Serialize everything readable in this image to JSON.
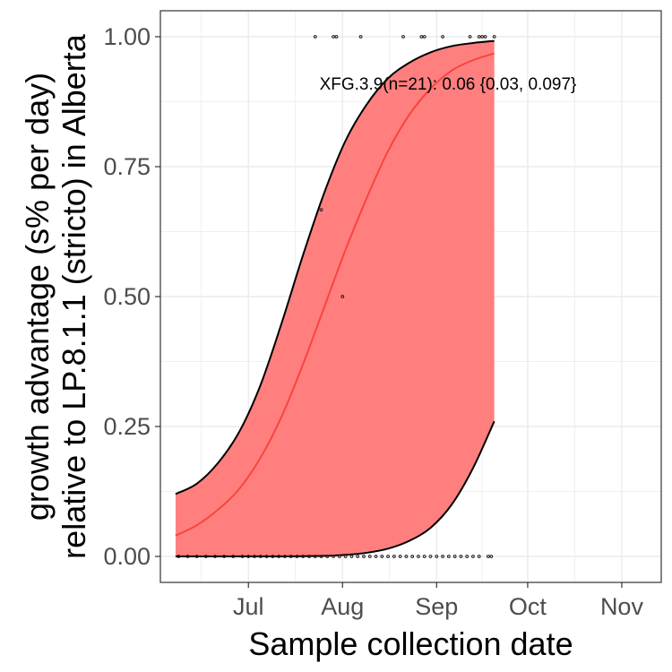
{
  "chart_data": {
    "type": "line",
    "xlabel": "Sample collection date",
    "ylabel_lines": [
      "growth advantage (s% per day)",
      "relative to LP.8.1.1 (stricto) in Alberta"
    ],
    "annotation": "XFG.3.9(n=21): 0.06 {0.03, 0.097}",
    "x_ticks": [
      {
        "date": "2025-07-01",
        "label": "Jul"
      },
      {
        "date": "2025-08-01",
        "label": "Aug"
      },
      {
        "date": "2025-09-01",
        "label": "Sep"
      },
      {
        "date": "2025-10-01",
        "label": "Oct"
      },
      {
        "date": "2025-11-01",
        "label": "Nov"
      }
    ],
    "y_ticks": [
      {
        "value": 0,
        "label": "0.00"
      },
      {
        "value": 0.25,
        "label": "0.25"
      },
      {
        "value": 0.5,
        "label": "0.50"
      },
      {
        "value": 0.75,
        "label": "0.75"
      },
      {
        "value": 1,
        "label": "1.00"
      }
    ],
    "xlim": [
      "2025-06-02",
      "2025-11-14"
    ],
    "ylim": [
      -0.05,
      1.05
    ],
    "grid": true,
    "colors": {
      "band": "#ff7f7f",
      "fit": "#f8453d",
      "bounds": "#000000",
      "points": "#2b1a1a",
      "grid": "#ebebeb",
      "panel_border": "#333333"
    },
    "series": [
      {
        "role": "fit",
        "x": [
          "2025-06-07",
          "2025-06-14",
          "2025-06-21",
          "2025-06-28",
          "2025-07-05",
          "2025-07-12",
          "2025-07-19",
          "2025-07-26",
          "2025-08-02",
          "2025-08-09",
          "2025-08-16",
          "2025-08-23",
          "2025-08-30",
          "2025-09-06",
          "2025-09-13",
          "2025-09-20"
        ],
        "y": [
          0.04,
          0.06,
          0.09,
          0.13,
          0.19,
          0.27,
          0.37,
          0.48,
          0.59,
          0.69,
          0.78,
          0.85,
          0.9,
          0.935,
          0.955,
          0.968
        ]
      },
      {
        "role": "upper",
        "x": [
          "2025-06-07",
          "2025-06-14",
          "2025-06-21",
          "2025-06-28",
          "2025-07-05",
          "2025-07-12",
          "2025-07-19",
          "2025-07-26",
          "2025-08-02",
          "2025-08-09",
          "2025-08-16",
          "2025-08-23",
          "2025-08-30",
          "2025-09-06",
          "2025-09-13",
          "2025-09-20"
        ],
        "y": [
          0.12,
          0.14,
          0.18,
          0.24,
          0.33,
          0.45,
          0.58,
          0.7,
          0.8,
          0.87,
          0.92,
          0.95,
          0.97,
          0.982,
          0.988,
          0.992
        ]
      },
      {
        "role": "lower",
        "x": [
          "2025-06-07",
          "2025-06-14",
          "2025-06-21",
          "2025-06-28",
          "2025-07-05",
          "2025-07-12",
          "2025-07-19",
          "2025-07-26",
          "2025-08-02",
          "2025-08-09",
          "2025-08-16",
          "2025-08-23",
          "2025-08-30",
          "2025-09-06",
          "2025-09-13",
          "2025-09-20"
        ],
        "y": [
          0.0,
          0.0,
          0.0,
          0.0,
          0.0,
          0.0,
          0.0005,
          0.001,
          0.003,
          0.007,
          0.015,
          0.03,
          0.055,
          0.1,
          0.17,
          0.26
        ]
      }
    ],
    "points": [
      {
        "x": "2025-07-23",
        "y": 1.0
      },
      {
        "x": "2025-07-29",
        "y": 1.0
      },
      {
        "x": "2025-07-30",
        "y": 1.0
      },
      {
        "x": "2025-08-07",
        "y": 1.0
      },
      {
        "x": "2025-08-21",
        "y": 1.0
      },
      {
        "x": "2025-08-27",
        "y": 1.0
      },
      {
        "x": "2025-08-28",
        "y": 1.0
      },
      {
        "x": "2025-09-03",
        "y": 1.0
      },
      {
        "x": "2025-09-12",
        "y": 1.0
      },
      {
        "x": "2025-09-15",
        "y": 1.0
      },
      {
        "x": "2025-09-16",
        "y": 1.0
      },
      {
        "x": "2025-09-17",
        "y": 1.0
      },
      {
        "x": "2025-09-20",
        "y": 1.0
      },
      {
        "x": "2025-07-25",
        "y": 0.667
      },
      {
        "x": "2025-08-01",
        "y": 0.5
      },
      {
        "x": "2025-06-08",
        "y": 0
      },
      {
        "x": "2025-06-11",
        "y": 0
      },
      {
        "x": "2025-06-14",
        "y": 0
      },
      {
        "x": "2025-06-17",
        "y": 0
      },
      {
        "x": "2025-06-20",
        "y": 0
      },
      {
        "x": "2025-06-23",
        "y": 0
      },
      {
        "x": "2025-06-26",
        "y": 0
      },
      {
        "x": "2025-06-29",
        "y": 0
      },
      {
        "x": "2025-07-01",
        "y": 0
      },
      {
        "x": "2025-07-03",
        "y": 0
      },
      {
        "x": "2025-07-05",
        "y": 0
      },
      {
        "x": "2025-07-07",
        "y": 0
      },
      {
        "x": "2025-07-09",
        "y": 0
      },
      {
        "x": "2025-07-11",
        "y": 0
      },
      {
        "x": "2025-07-13",
        "y": 0
      },
      {
        "x": "2025-07-15",
        "y": 0
      },
      {
        "x": "2025-07-17",
        "y": 0
      },
      {
        "x": "2025-07-19",
        "y": 0
      },
      {
        "x": "2025-07-21",
        "y": 0
      },
      {
        "x": "2025-07-23",
        "y": 0
      },
      {
        "x": "2025-07-25",
        "y": 0
      },
      {
        "x": "2025-07-27",
        "y": 0
      },
      {
        "x": "2025-07-29",
        "y": 0
      },
      {
        "x": "2025-07-31",
        "y": 0
      },
      {
        "x": "2025-08-02",
        "y": 0
      },
      {
        "x": "2025-08-04",
        "y": 0
      },
      {
        "x": "2025-08-06",
        "y": 0
      },
      {
        "x": "2025-08-08",
        "y": 0
      },
      {
        "x": "2025-08-10",
        "y": 0
      },
      {
        "x": "2025-08-12",
        "y": 0
      },
      {
        "x": "2025-08-14",
        "y": 0
      },
      {
        "x": "2025-08-16",
        "y": 0
      },
      {
        "x": "2025-08-18",
        "y": 0
      },
      {
        "x": "2025-08-20",
        "y": 0
      },
      {
        "x": "2025-08-22",
        "y": 0
      },
      {
        "x": "2025-08-24",
        "y": 0
      },
      {
        "x": "2025-08-26",
        "y": 0
      },
      {
        "x": "2025-08-28",
        "y": 0
      },
      {
        "x": "2025-08-30",
        "y": 0
      },
      {
        "x": "2025-09-01",
        "y": 0
      },
      {
        "x": "2025-09-03",
        "y": 0
      },
      {
        "x": "2025-09-05",
        "y": 0
      },
      {
        "x": "2025-09-07",
        "y": 0
      },
      {
        "x": "2025-09-09",
        "y": 0
      },
      {
        "x": "2025-09-11",
        "y": 0
      },
      {
        "x": "2025-09-13",
        "y": 0
      },
      {
        "x": "2025-09-15",
        "y": 0
      },
      {
        "x": "2025-09-18",
        "y": 0
      },
      {
        "x": "2025-09-19",
        "y": 0
      }
    ]
  }
}
